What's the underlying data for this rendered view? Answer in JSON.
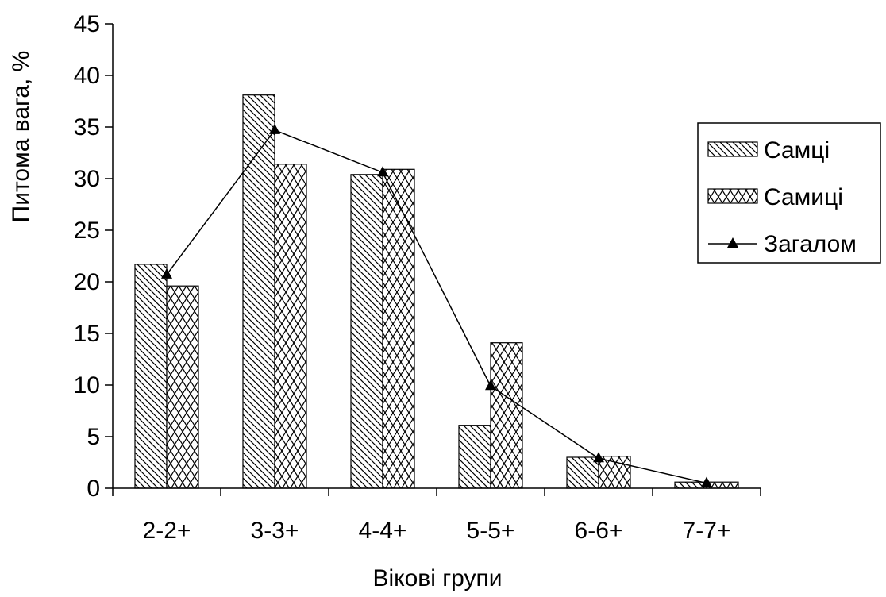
{
  "chart_data": {
    "type": "bar",
    "categories": [
      "2-2+",
      "3-3+",
      "4-4+",
      "5-5+",
      "6-6+",
      "7-7+"
    ],
    "series": [
      {
        "name": "Самці",
        "kind": "bar",
        "pattern": "diagonal-hatch",
        "values": [
          21.7,
          38.1,
          30.4,
          6.1,
          3.0,
          0.6
        ]
      },
      {
        "name": "Самиці",
        "kind": "bar",
        "pattern": "zigzag",
        "values": [
          19.6,
          31.4,
          30.9,
          14.1,
          3.1,
          0.6
        ]
      },
      {
        "name": "Загалом",
        "kind": "line",
        "marker": "triangle",
        "values": [
          20.7,
          34.7,
          30.6,
          9.9,
          2.9,
          0.5
        ]
      }
    ],
    "ylabel": "Питома вага, %",
    "xlabel": "Вікові групи",
    "ylim": [
      0,
      45
    ],
    "yticks": [
      "0",
      "5",
      "10",
      "15",
      "20",
      "25",
      "30",
      "35",
      "40",
      "45"
    ],
    "grid": false,
    "legend_position": "right",
    "colors": {
      "stroke": "#000000",
      "fill": "#ffffff"
    }
  }
}
